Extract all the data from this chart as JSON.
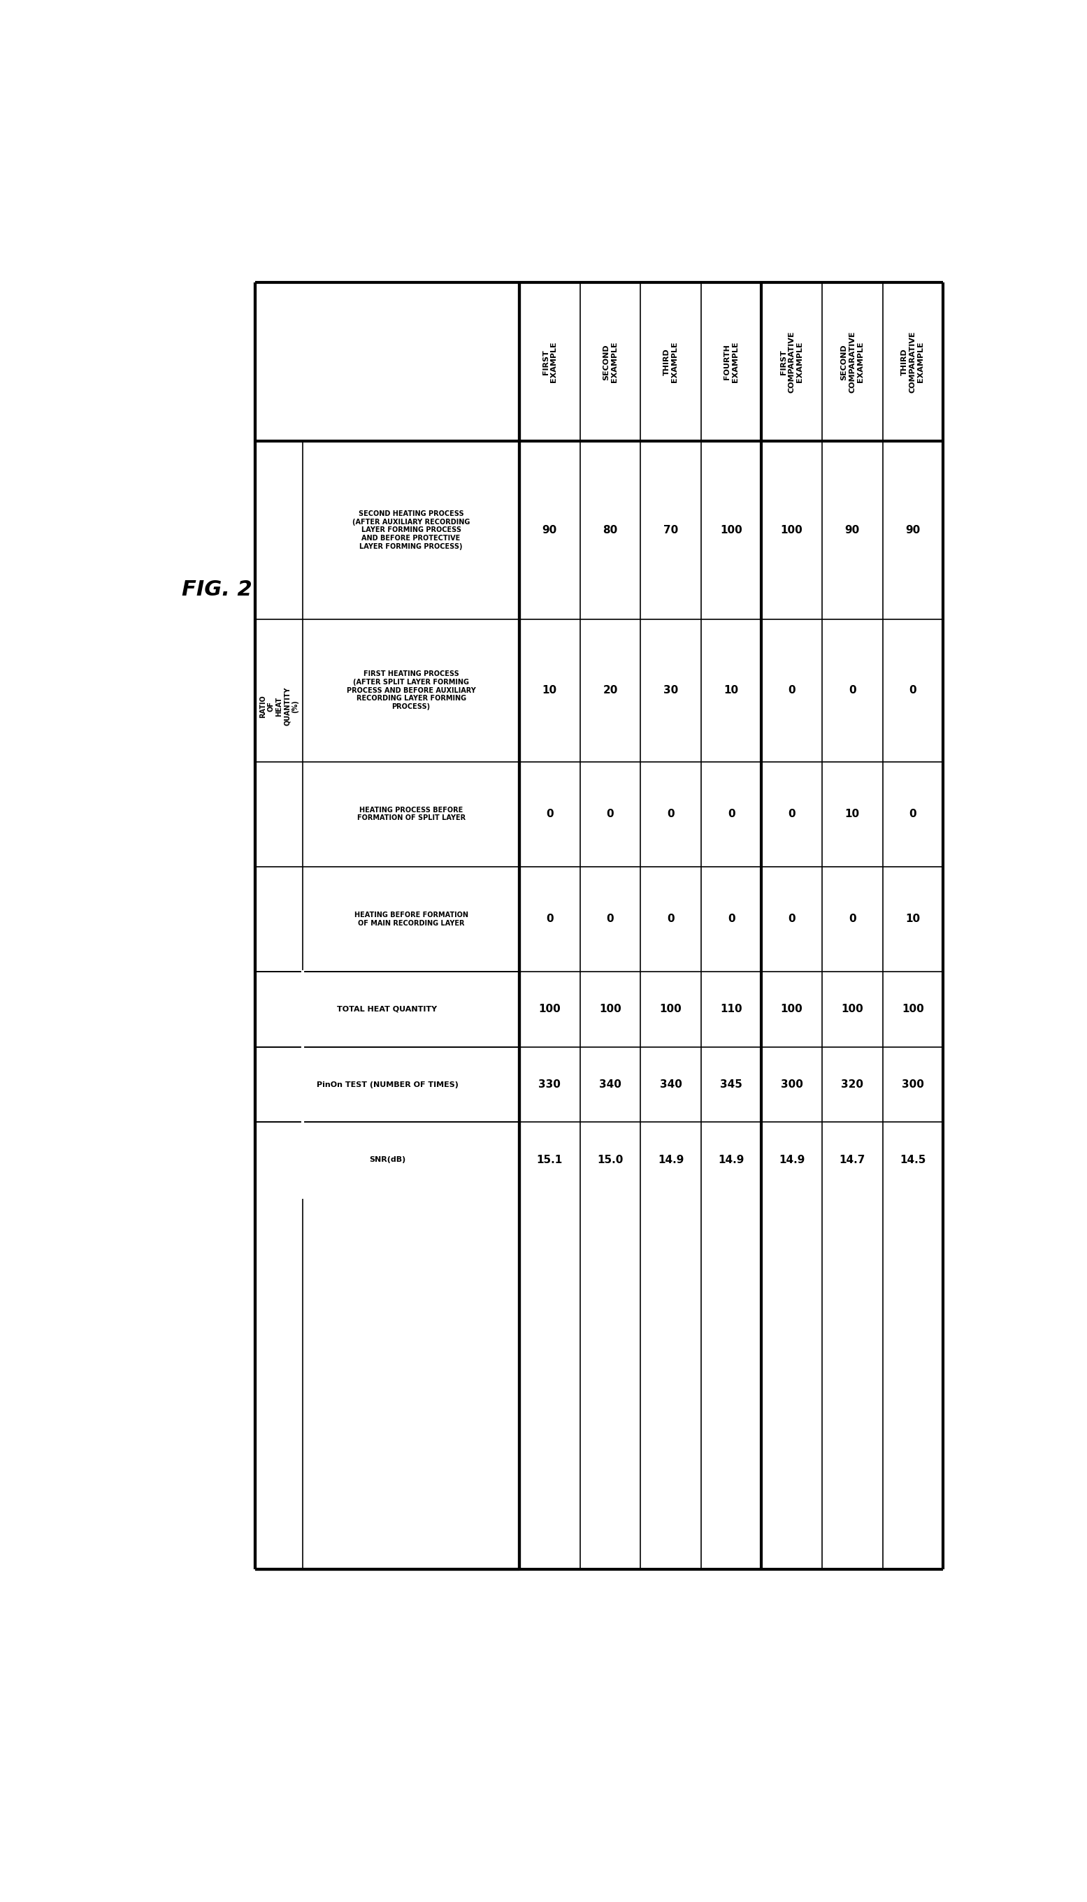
{
  "title": "FIG. 2",
  "col_headers": [
    "FIRST\nEXAMPLE",
    "SECOND\nEXAMPLE",
    "THIRD\nEXAMPLE",
    "FOURTH\nEXAMPLE",
    "FIRST\nCOMPARATIVE\nEXAMPLE",
    "SECOND\nCOMPARATIVE\nEXAMPLE",
    "THIRD\nCOMPARATIVE\nEXAMPLE"
  ],
  "row_label_main": "RATIO\nOF\nHEAT\nQUANTITY\n(%)",
  "row_headers": [
    "SECOND HEATING PROCESS\n(AFTER AUXILIARY RECORDING\nLAYER FORMING PROCESS\nAND BEFORE PROTECTIVE\nLAYER FORMING PROCESS)",
    "FIRST HEATING PROCESS\n(AFTER SPLIT LAYER FORMING\nPROCESS AND BEFORE AUXILIARY\nRECORDING LAYER FORMING\nPROCESS)",
    "HEATING PROCESS BEFORE\nFORMATION OF SPLIT LAYER",
    "HEATING BEFORE FORMATION\nOF MAIN RECORDING LAYER",
    "TOTAL HEAT QUANTITY",
    "PinOn TEST (NUMBER OF TIMES)",
    "SNR(dB)"
  ],
  "data": [
    [
      "90",
      "80",
      "70",
      "100",
      "100",
      "90",
      "90"
    ],
    [
      "10",
      "20",
      "30",
      "10",
      "0",
      "0",
      "0"
    ],
    [
      "0",
      "0",
      "0",
      "0",
      "0",
      "10",
      "0"
    ],
    [
      "0",
      "0",
      "0",
      "0",
      "0",
      "0",
      "10"
    ],
    [
      "100",
      "100",
      "100",
      "110",
      "100",
      "100",
      "100"
    ],
    [
      "330",
      "340",
      "340",
      "345",
      "300",
      "320",
      "300"
    ],
    [
      "15.1",
      "15.0",
      "14.9",
      "14.9",
      "14.9",
      "14.7",
      "14.5"
    ]
  ],
  "bg_color": "#ffffff",
  "thick_lw": 3.0,
  "thin_lw": 1.2,
  "title_fontsize": 22,
  "header_fontsize": 8,
  "rowlabel_fontsize": 7,
  "data_fontsize": 11
}
